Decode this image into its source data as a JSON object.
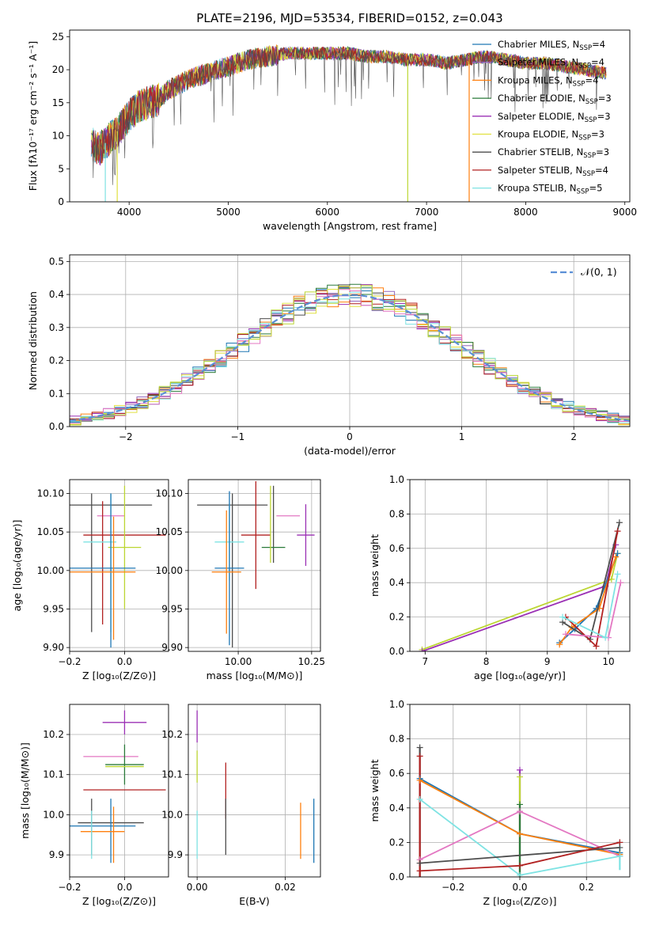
{
  "figure_title": "PLATE=2196, MJD=53534, FIBERID=0152, z=0.043",
  "model_colors": [
    "#1f77b4",
    "#9467bd",
    "#ff7f0e",
    "#2a7a3a",
    "#9b30b5",
    "#e0e040",
    "#4d4d4d",
    "#b22222",
    "#7fe3e3"
  ],
  "extra_colors": {
    "pink": "#e377c2",
    "green": "#bcd632",
    "gray": "#7f7f7f"
  },
  "chart_data": [
    {
      "id": "spectrum",
      "type": "line",
      "title": "PLATE=2196, MJD=53534, FIBERID=0152, z=0.043",
      "xlabel": "wavelength [Angstrom, rest frame]",
      "ylabel": "Flux [fλ10⁻¹⁷ erg cm⁻² s⁻¹ A⁻¹]",
      "xlim": [
        3400,
        9050
      ],
      "ylim": [
        0,
        26
      ],
      "xticks": [
        4000,
        5000,
        6000,
        7000,
        8000,
        9000
      ],
      "yticks": [
        0,
        5,
        10,
        15,
        20,
        25
      ],
      "grid": false,
      "legend_position": "top-right",
      "series": [
        {
          "name": "Chabrier MILES, N_SSP=4",
          "name_main": "Chabrier MILES, N",
          "name_sub": "SSP",
          "name_tail": "=4",
          "color": "#1f77b4"
        },
        {
          "name": "Salpeter MILES, N_SSP=4",
          "name_main": "Salpeter MILES, N",
          "name_sub": "SSP",
          "name_tail": "=4",
          "color": "#9467bd"
        },
        {
          "name": "Kroupa MILES, N_SSP=4",
          "name_main": "Kroupa MILES, N",
          "name_sub": "SSP",
          "name_tail": "=4",
          "color": "#ff7f0e"
        },
        {
          "name": "Chabrier ELODIE, N_SSP=3",
          "name_main": "Chabrier ELODIE, N",
          "name_sub": "SSP",
          "name_tail": "=3",
          "color": "#2a7a3a"
        },
        {
          "name": "Salpeter ELODIE, N_SSP=3",
          "name_main": "Salpeter ELODIE, N",
          "name_sub": "SSP",
          "name_tail": "=3",
          "color": "#9b30b5"
        },
        {
          "name": "Kroupa ELODIE, N_SSP=3",
          "name_main": "Kroupa ELODIE, N",
          "name_sub": "SSP",
          "name_tail": "=3",
          "color": "#e0e040"
        },
        {
          "name": "Chabrier STELIB, N_SSP=3",
          "name_main": "Chabrier STELIB, N",
          "name_sub": "SSP",
          "name_tail": "=3",
          "color": "#4d4d4d"
        },
        {
          "name": "Salpeter STELIB, N_SSP=4",
          "name_main": "Salpeter STELIB, N",
          "name_sub": "SSP",
          "name_tail": "=4",
          "color": "#b22222"
        },
        {
          "name": "Kroupa STELIB, N_SSP=5",
          "name_main": "Kroupa STELIB, N",
          "name_sub": "SSP",
          "name_tail": "=5",
          "color": "#7fe3e3"
        }
      ],
      "continuum": {
        "x": [
          3600,
          3700,
          3800,
          3900,
          4000,
          4100,
          4200,
          4300,
          4400,
          4600,
          4800,
          5000,
          5200,
          5400,
          5600,
          5800,
          6000,
          6200,
          6400,
          6600,
          6800,
          7000,
          7200,
          7400,
          7600,
          7800,
          8000,
          8200,
          8400,
          8600,
          8800
        ],
        "y": [
          9,
          8,
          9.5,
          11,
          13,
          14.5,
          15,
          15.5,
          17,
          18.5,
          19.5,
          20.5,
          21.5,
          22,
          22.5,
          22.5,
          22.5,
          22.5,
          22,
          22,
          21.5,
          21.5,
          21,
          21.5,
          22,
          21.5,
          21,
          21,
          20.5,
          20,
          19.5
        ]
      },
      "cutoffs": [
        {
          "x": 3760,
          "color": "#7fe3e3"
        },
        {
          "x": 3880,
          "color": "#e0e040"
        },
        {
          "x": 6810,
          "color": "#bcd632"
        },
        {
          "x": 7430,
          "color": "#ff7f0e"
        }
      ]
    },
    {
      "id": "residuals",
      "type": "step",
      "xlabel": "(data-model)/error",
      "ylabel": "Normed distribution",
      "xlim": [
        -2.5,
        2.5
      ],
      "ylim": [
        0,
        0.52
      ],
      "xticks": [
        -2,
        -1,
        0,
        1,
        2
      ],
      "yticks": [
        0.0,
        0.1,
        0.2,
        0.3,
        0.4,
        0.5
      ],
      "grid": true,
      "legend_position": "top-right",
      "legend_label": "𝒩(0, 1)",
      "gaussian": {
        "mean": 0,
        "sigma": 1,
        "color": "#5b8fd6"
      },
      "bin_width": 0.1
    },
    {
      "id": "age-vs-Z",
      "type": "scatter",
      "xlabel": "Z [log₁₀(Z/Z⊙)]",
      "ylabel": "age  [log₁₀(age/yr)]",
      "xlim": [
        -0.2,
        0.16
      ],
      "ylim": [
        9.895,
        10.118
      ],
      "xticks": [
        -0.2,
        0.0
      ],
      "yticks": [
        9.9,
        9.95,
        10.0,
        10.05,
        10.1
      ],
      "grid": true,
      "points": [
        {
          "x": -0.06,
          "y": 10.085,
          "xerr": 0.16,
          "yerr": 0.0,
          "color": "#4d4d4d"
        },
        {
          "x": -0.12,
          "y": 10.01,
          "xerr": 0.0,
          "yerr": 0.09,
          "color": "#4d4d4d"
        },
        {
          "x": -0.05,
          "y": 10.071,
          "xerr": 0.05,
          "yerr": 0.0,
          "color": "#e377c2"
        },
        {
          "x": 0.0,
          "y": 10.046,
          "xerr": 0.15,
          "yerr": 0.0,
          "color": "#b22222"
        },
        {
          "x": -0.08,
          "y": 10.01,
          "xerr": 0.0,
          "yerr": 0.08,
          "color": "#b22222"
        },
        {
          "x": 0.0,
          "y": 10.03,
          "xerr": 0.06,
          "yerr": 0.08,
          "color": "#bcd632"
        },
        {
          "x": -0.09,
          "y": 10.037,
          "xerr": 0.06,
          "yerr": 0.0,
          "color": "#7fe3e3"
        },
        {
          "x": -0.05,
          "y": 10.01,
          "xerr": 0.0,
          "yerr": 0.09,
          "color": "#7fe3e3"
        },
        {
          "x": -0.08,
          "y": 10.003,
          "xerr": 0.12,
          "yerr": 0.0,
          "color": "#1f77b4"
        },
        {
          "x": -0.05,
          "y": 10.0,
          "xerr": 0.0,
          "yerr": 0.1,
          "color": "#1f77b4"
        },
        {
          "x": -0.08,
          "y": 9.998,
          "xerr": 0.12,
          "yerr": 0.0,
          "color": "#ff7f0e"
        },
        {
          "x": -0.04,
          "y": 9.99,
          "xerr": 0.0,
          "yerr": 0.08,
          "color": "#ff7f0e"
        }
      ]
    },
    {
      "id": "age-vs-mass",
      "type": "scatter",
      "xlabel": "mass [log₁₀(M/M⊙)]",
      "ylabel": "",
      "xlim": [
        9.83,
        10.28
      ],
      "ylim": [
        9.895,
        10.118
      ],
      "xticks": [
        10.0,
        10.25
      ],
      "yticks": [
        9.9,
        9.95,
        10.0,
        10.05,
        10.1
      ],
      "grid": true,
      "points": [
        {
          "x": 9.98,
          "y": 10.085,
          "xerr": 0.12,
          "yerr": 0.0,
          "color": "#4d4d4d"
        },
        {
          "x": 9.98,
          "y": 10.0,
          "xerr": 0.0,
          "yerr": 0.1,
          "color": "#4d4d4d"
        },
        {
          "x": 10.12,
          "y": 10.06,
          "xerr": 0.0,
          "yerr": 0.05,
          "color": "#4d4d4d"
        },
        {
          "x": 10.12,
          "y": 10.03,
          "xerr": 0.04,
          "yerr": 0.0,
          "color": "#2a7a3a"
        },
        {
          "x": 10.17,
          "y": 10.071,
          "xerr": 0.04,
          "yerr": 0.0,
          "color": "#e377c2"
        },
        {
          "x": 10.23,
          "y": 10.046,
          "xerr": 0.03,
          "yerr": 0.04,
          "color": "#9b30b5"
        },
        {
          "x": 10.06,
          "y": 10.046,
          "xerr": 0.05,
          "yerr": 0.07,
          "color": "#b22222"
        },
        {
          "x": 10.11,
          "y": 10.06,
          "xerr": 0.0,
          "yerr": 0.05,
          "color": "#bcd632"
        },
        {
          "x": 9.97,
          "y": 10.037,
          "xerr": 0.05,
          "yerr": 0.05,
          "color": "#7fe3e3"
        },
        {
          "x": 9.97,
          "y": 10.003,
          "xerr": 0.05,
          "yerr": 0.1,
          "color": "#1f77b4"
        },
        {
          "x": 9.96,
          "y": 9.998,
          "xerr": 0.05,
          "yerr": 0.08,
          "color": "#ff7f0e"
        }
      ]
    },
    {
      "id": "weight-vs-age",
      "type": "line",
      "xlabel": "age  [log₁₀(age/yr)]",
      "ylabel": "mass weight",
      "xlim": [
        6.75,
        10.35
      ],
      "ylim": [
        0,
        1
      ],
      "xticks": [
        7,
        8,
        9,
        10
      ],
      "yticks": [
        0.0,
        0.2,
        0.4,
        0.6,
        0.8,
        1.0
      ],
      "grid": true,
      "series": [
        {
          "color": "#bcd632",
          "x": [
            6.95,
            10.05,
            10.15
          ],
          "y": [
            0.01,
            0.42,
            0.57
          ]
        },
        {
          "color": "#9b30b5",
          "x": [
            6.95,
            9.95,
            10.12
          ],
          "y": [
            0.0,
            0.38,
            0.62
          ]
        },
        {
          "color": "#1f77b4",
          "x": [
            9.2,
            9.45,
            9.8,
            10.15
          ],
          "y": [
            0.05,
            0.13,
            0.25,
            0.57
          ]
        },
        {
          "color": "#ff7f0e",
          "x": [
            9.2,
            9.4,
            9.85,
            10.12
          ],
          "y": [
            0.04,
            0.14,
            0.25,
            0.55
          ]
        },
        {
          "color": "#4d4d4d",
          "x": [
            9.25,
            9.7,
            10.18
          ],
          "y": [
            0.17,
            0.07,
            0.75
          ]
        },
        {
          "color": "#b22222",
          "x": [
            9.3,
            9.8,
            10.15
          ],
          "y": [
            0.2,
            0.03,
            0.7
          ]
        },
        {
          "color": "#e377c2",
          "x": [
            9.3,
            10.0,
            10.2
          ],
          "y": [
            0.1,
            0.08,
            0.4
          ]
        },
        {
          "color": "#7fe3e3",
          "x": [
            9.25,
            9.95,
            10.15
          ],
          "y": [
            0.2,
            0.08,
            0.45
          ]
        }
      ]
    },
    {
      "id": "mass-vs-Z",
      "type": "scatter",
      "xlabel": "Z [log₁₀(Z/Z⊙)]",
      "ylabel": "mass [log₁₀(M/M⊙)]",
      "xlim": [
        -0.2,
        0.16
      ],
      "ylim": [
        9.845,
        10.275
      ],
      "xticks": [
        -0.2,
        0.0
      ],
      "yticks": [
        9.9,
        10.0,
        10.1,
        10.2
      ],
      "grid": true,
      "points": [
        {
          "x": 0.0,
          "y": 10.23,
          "xerr": 0.08,
          "yerr": 0.03,
          "color": "#9b30b5"
        },
        {
          "x": -0.05,
          "y": 10.145,
          "xerr": 0.1,
          "yerr": 0.0,
          "color": "#e377c2"
        },
        {
          "x": 0.0,
          "y": 10.125,
          "xerr": 0.07,
          "yerr": 0.05,
          "color": "#2a7a3a"
        },
        {
          "x": 0.0,
          "y": 10.12,
          "xerr": 0.07,
          "yerr": 0.0,
          "color": "#bcd632"
        },
        {
          "x": -0.1,
          "y": 10.062,
          "xerr": 0.0,
          "yerr": 0.0,
          "color": "#b22222"
        },
        {
          "x": 0.0,
          "y": 10.062,
          "xerr": 0.15,
          "yerr": 0.0,
          "color": "#b22222"
        },
        {
          "x": -0.05,
          "y": 9.98,
          "xerr": 0.12,
          "yerr": 0.0,
          "color": "#4d4d4d"
        },
        {
          "x": -0.12,
          "y": 9.97,
          "xerr": 0.0,
          "yerr": 0.07,
          "color": "#4d4d4d"
        },
        {
          "x": -0.08,
          "y": 9.972,
          "xerr": 0.12,
          "yerr": 0.0,
          "color": "#1f77b4"
        },
        {
          "x": -0.05,
          "y": 9.96,
          "xerr": 0.0,
          "yerr": 0.08,
          "color": "#1f77b4"
        },
        {
          "x": -0.08,
          "y": 9.958,
          "xerr": 0.08,
          "yerr": 0.0,
          "color": "#ff7f0e"
        },
        {
          "x": -0.04,
          "y": 9.95,
          "xerr": 0.0,
          "yerr": 0.07,
          "color": "#ff7f0e"
        },
        {
          "x": -0.12,
          "y": 9.95,
          "xerr": 0.0,
          "yerr": 0.06,
          "color": "#7fe3e3"
        }
      ]
    },
    {
      "id": "mass-vs-EBV",
      "type": "scatter",
      "xlabel": "E(B-V)",
      "ylabel": "",
      "xlim": [
        -0.002,
        0.028
      ],
      "ylim": [
        9.845,
        10.275
      ],
      "xticks": [
        0.0,
        0.02
      ],
      "yticks": [
        9.9,
        10.0,
        10.1,
        10.2
      ],
      "grid": true,
      "points": [
        {
          "x": 0.0,
          "y": 10.22,
          "xerr": 0.0,
          "yerr": 0.04,
          "color": "#9b30b5"
        },
        {
          "x": 0.0,
          "y": 10.12,
          "xerr": 0.0,
          "yerr": 0.04,
          "color": "#bcd632"
        },
        {
          "x": 0.0,
          "y": 9.95,
          "xerr": 0.0,
          "yerr": 0.06,
          "color": "#7fe3e3"
        },
        {
          "x": 0.0065,
          "y": 10.06,
          "xerr": 0.0,
          "yerr": 0.07,
          "color": "#b22222"
        },
        {
          "x": 0.0065,
          "y": 9.97,
          "xerr": 0.0,
          "yerr": 0.07,
          "color": "#4d4d4d"
        },
        {
          "x": 0.0235,
          "y": 9.96,
          "xerr": 0.0,
          "yerr": 0.07,
          "color": "#ff7f0e"
        },
        {
          "x": 0.0265,
          "y": 9.96,
          "xerr": 0.0,
          "yerr": 0.08,
          "color": "#1f77b4"
        }
      ]
    },
    {
      "id": "weight-vs-Z",
      "type": "line",
      "xlabel": "Z [log₁₀(Z/Z⊙)]",
      "ylabel": "mass weight",
      "xlim": [
        -0.33,
        0.33
      ],
      "ylim": [
        0,
        1
      ],
      "xticks": [
        -0.2,
        0.0,
        0.2
      ],
      "yticks": [
        0.0,
        0.2,
        0.4,
        0.6,
        0.8,
        1.0
      ],
      "grid": true,
      "series": [
        {
          "color": "#1f77b4",
          "x": [
            -0.3,
            0.0,
            0.3
          ],
          "y": [
            0.57,
            0.25,
            0.14
          ]
        },
        {
          "color": "#ff7f0e",
          "x": [
            -0.3,
            0.0,
            0.3
          ],
          "y": [
            0.56,
            0.25,
            0.13
          ]
        },
        {
          "color": "#e377c2",
          "x": [
            -0.3,
            0.0,
            0.3
          ],
          "y": [
            0.1,
            0.38,
            0.12
          ]
        },
        {
          "color": "#7fe3e3",
          "x": [
            -0.3,
            0.0,
            0.3
          ],
          "y": [
            0.45,
            0.01,
            0.12
          ]
        },
        {
          "color": "#4d4d4d",
          "x": [
            -0.3,
            0.3
          ],
          "y": [
            0.08,
            0.17
          ]
        },
        {
          "color": "#b22222",
          "x": [
            -0.3,
            0.0,
            0.3
          ],
          "y": [
            0.035,
            0.065,
            0.2
          ]
        }
      ],
      "stems": [
        {
          "x": -0.3,
          "y0": 0.0,
          "y1": 0.75,
          "color": "#4d4d4d"
        },
        {
          "x": -0.3,
          "y0": 0.0,
          "y1": 0.7,
          "color": "#b22222"
        },
        {
          "x": 0.0,
          "y0": 0.0,
          "y1": 0.62,
          "color": "#9b30b5"
        },
        {
          "x": 0.0,
          "y0": 0.0,
          "y1": 0.58,
          "color": "#bcd632"
        },
        {
          "x": 0.0,
          "y0": 0.0,
          "y1": 0.42,
          "color": "#2a7a3a"
        },
        {
          "x": 0.3,
          "y0": 0.04,
          "y1": 0.2,
          "color": "#7fe3e3"
        }
      ]
    }
  ]
}
